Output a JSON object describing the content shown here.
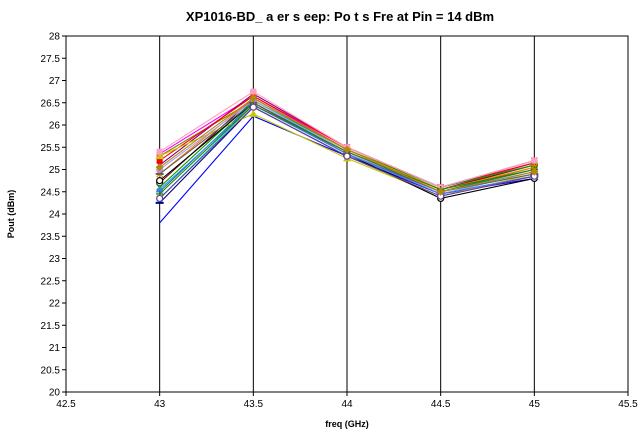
{
  "chart_data": {
    "type": "line",
    "title": "XP1016-BD_   a er s   eep: Po  t  s Fre    at Pin = 14 dBm",
    "xlabel": "freq (GHz)",
    "ylabel": "Pout (dBm)",
    "xlim": [
      42.5,
      45.5
    ],
    "ylim": [
      20,
      28
    ],
    "xticks": [
      42.5,
      43,
      43.5,
      44,
      44.5,
      45,
      45.5
    ],
    "yticks": [
      20,
      20.5,
      21,
      21.5,
      22,
      22.5,
      23,
      23.5,
      24,
      24.5,
      25,
      25.5,
      26,
      26.5,
      27,
      27.5,
      28
    ],
    "grid": "vertical",
    "legend": "none",
    "x": [
      43,
      43.5,
      44,
      44.5,
      45
    ],
    "series": [
      {
        "color": "#0000ff",
        "marker": "none",
        "values": [
          23.8,
          26.2,
          25.3,
          24.45,
          24.8
        ]
      },
      {
        "color": "#ff00ff",
        "marker": "square",
        "values": [
          25.35,
          26.65,
          25.45,
          24.55,
          25.15
        ]
      },
      {
        "color": "#808000",
        "marker": "triangle",
        "values": [
          25.3,
          26.55,
          25.4,
          24.5,
          25.05
        ]
      },
      {
        "color": "#00ffff",
        "marker": "x",
        "values": [
          24.35,
          26.45,
          25.35,
          24.45,
          24.95
        ]
      },
      {
        "color": "#800080",
        "marker": "star",
        "values": [
          25.1,
          26.7,
          25.5,
          24.6,
          25.2
        ]
      },
      {
        "color": "#800000",
        "marker": "circle",
        "values": [
          24.7,
          26.6,
          25.45,
          24.55,
          25.1
        ]
      },
      {
        "color": "#008080",
        "marker": "plus",
        "values": [
          24.5,
          26.5,
          25.4,
          24.5,
          25.0
        ]
      },
      {
        "color": "#000080",
        "marker": "dash",
        "values": [
          24.25,
          26.4,
          25.3,
          24.45,
          24.85
        ]
      },
      {
        "color": "#ff0000",
        "marker": "square",
        "values": [
          25.2,
          26.65,
          25.5,
          24.6,
          25.15
        ]
      },
      {
        "color": "#c8c800",
        "marker": "triangle",
        "values": [
          25.3,
          26.25,
          25.25,
          24.4,
          24.9
        ]
      },
      {
        "color": "#00a000",
        "marker": "x",
        "values": [
          24.6,
          26.55,
          25.45,
          24.6,
          25.1
        ]
      },
      {
        "color": "#ff8000",
        "marker": "star",
        "values": [
          24.9,
          26.6,
          25.45,
          24.55,
          25.05
        ]
      },
      {
        "color": "#000000",
        "marker": "circle",
        "values": [
          24.75,
          26.5,
          25.35,
          24.35,
          24.8
        ]
      },
      {
        "color": "#a0a0ff",
        "marker": "diamond",
        "values": [
          25.0,
          26.55,
          25.4,
          24.45,
          24.95
        ]
      },
      {
        "color": "#606060",
        "marker": "dash",
        "values": [
          24.9,
          26.5,
          25.35,
          24.5,
          24.9
        ]
      },
      {
        "color": "#ffa0c0",
        "marker": "square",
        "values": [
          25.4,
          26.75,
          25.5,
          24.6,
          25.2
        ]
      },
      {
        "color": "#4080ff",
        "marker": "triangle",
        "values": [
          24.55,
          26.45,
          25.35,
          24.45,
          24.85
        ]
      },
      {
        "color": "#2a8000",
        "marker": "plus",
        "values": [
          24.45,
          26.45,
          25.4,
          24.55,
          25.0
        ]
      },
      {
        "color": "#6a3d9a",
        "marker": "circle",
        "values": [
          24.35,
          26.4,
          25.3,
          24.4,
          24.85
        ]
      },
      {
        "color": "#b8860b",
        "marker": "diamond",
        "values": [
          25.05,
          26.6,
          25.45,
          24.5,
          24.95
        ]
      }
    ]
  }
}
